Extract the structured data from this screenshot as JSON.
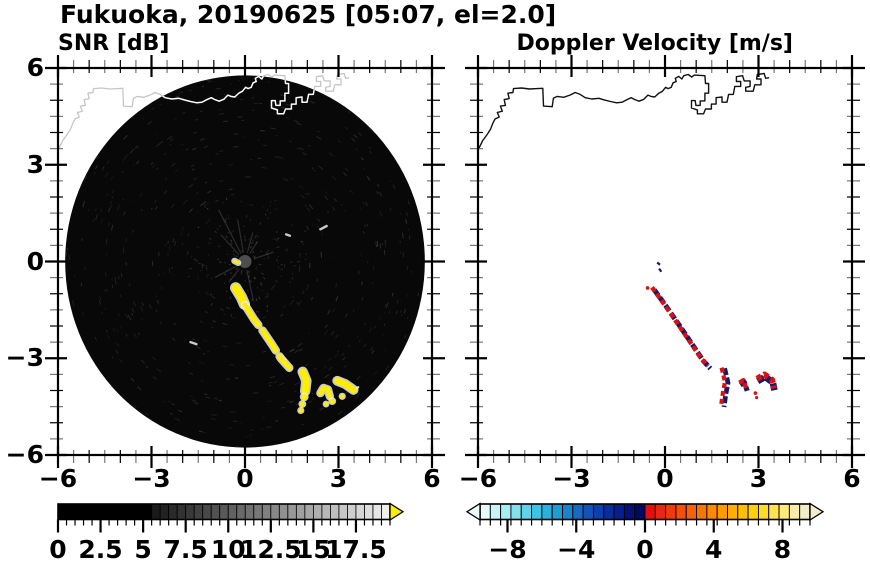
{
  "header": {
    "title": "Fukuoka, 20190625 [05:07, el=2.0]"
  },
  "panels": {
    "snr": {
      "title": "SNR [dB]"
    },
    "doppler": {
      "title": "Doppler Velocity [m/s]"
    }
  },
  "axes": {
    "range": [
      -6,
      6
    ],
    "major_step": 3,
    "minor_step": 0.5,
    "tick_labels": [
      "−6",
      "−3",
      "0",
      "3",
      "6"
    ],
    "tick_values": [
      -6,
      -3,
      0,
      3,
      6
    ]
  },
  "colors": {
    "scan_bg": "#080808",
    "disk": "#4d4d4d",
    "yellow": "#ffee00",
    "fringe": "#ededed",
    "navy": "#18186b",
    "red": "#d91111",
    "coast_white": "#ffffff",
    "coast_black": "#111111",
    "coast_faint": "#c6c6c6",
    "frame": "#000000",
    "minor_tick_alt": "#777777"
  },
  "coastline": {
    "points": [
      [
        -6.0,
        3.45
      ],
      [
        -5.85,
        3.75
      ],
      [
        -5.7,
        3.95
      ],
      [
        -5.6,
        4.1
      ],
      [
        -5.52,
        4.3
      ],
      [
        -5.45,
        4.42
      ],
      [
        -5.32,
        4.48
      ],
      [
        -5.38,
        4.62
      ],
      [
        -5.22,
        4.66
      ],
      [
        -5.28,
        4.82
      ],
      [
        -5.12,
        4.84
      ],
      [
        -5.16,
        5.02
      ],
      [
        -5.0,
        5.05
      ],
      [
        -5.04,
        5.22
      ],
      [
        -4.88,
        5.24
      ],
      [
        -4.86,
        5.36
      ],
      [
        -4.6,
        5.38
      ],
      [
        -4.35,
        5.35
      ],
      [
        -4.1,
        5.36
      ],
      [
        -3.92,
        5.37
      ],
      [
        -3.9,
        4.82
      ],
      [
        -3.62,
        4.8
      ],
      [
        -3.58,
        5.06
      ],
      [
        -3.46,
        5.12
      ],
      [
        -3.25,
        5.09
      ],
      [
        -3.05,
        5.16
      ],
      [
        -2.88,
        5.24
      ],
      [
        -2.72,
        5.18
      ],
      [
        -2.56,
        5.08
      ],
      [
        -2.35,
        5.04
      ],
      [
        -2.12,
        5.06
      ],
      [
        -1.95,
        5.01
      ],
      [
        -1.75,
        4.96
      ],
      [
        -1.55,
        4.92
      ],
      [
        -1.38,
        4.94
      ],
      [
        -1.22,
        5.02
      ],
      [
        -1.08,
        5.08
      ],
      [
        -0.97,
        5.02
      ],
      [
        -0.83,
        4.97
      ],
      [
        -0.68,
        5.03
      ],
      [
        -0.55,
        5.16
      ],
      [
        -0.45,
        5.12
      ],
      [
        -0.33,
        5.1
      ],
      [
        -0.2,
        5.22
      ],
      [
        -0.08,
        5.28
      ],
      [
        0.02,
        5.4
      ],
      [
        0.1,
        5.36
      ],
      [
        0.2,
        5.4
      ],
      [
        0.26,
        5.54
      ],
      [
        0.36,
        5.58
      ],
      [
        0.33,
        5.68
      ],
      [
        0.44,
        5.74
      ],
      [
        0.54,
        5.66
      ],
      [
        0.6,
        5.76
      ],
      [
        0.74,
        5.8
      ],
      [
        0.86,
        5.72
      ],
      [
        0.94,
        5.78
      ],
      [
        1.28,
        5.76
      ],
      [
        1.3,
        5.52
      ],
      [
        1.4,
        5.52
      ],
      [
        1.4,
        5.22
      ],
      [
        1.28,
        5.22
      ],
      [
        1.28,
        4.98
      ],
      [
        1.13,
        4.98
      ],
      [
        1.13,
        4.84
      ],
      [
        0.99,
        4.84
      ],
      [
        0.97,
        4.99
      ],
      [
        0.85,
        4.99
      ],
      [
        0.85,
        4.76
      ],
      [
        1.04,
        4.7
      ],
      [
        1.04,
        4.58
      ],
      [
        1.24,
        4.58
      ],
      [
        1.3,
        4.73
      ],
      [
        1.49,
        4.73
      ],
      [
        1.49,
        4.88
      ],
      [
        1.64,
        4.88
      ],
      [
        1.64,
        5.08
      ],
      [
        1.83,
        5.1
      ],
      [
        1.83,
        4.94
      ],
      [
        1.99,
        4.94
      ],
      [
        2.04,
        5.18
      ],
      [
        2.19,
        5.18
      ],
      [
        2.24,
        5.43
      ],
      [
        2.43,
        5.43
      ],
      [
        2.43,
        5.58
      ],
      [
        2.29,
        5.58
      ],
      [
        2.29,
        5.73
      ],
      [
        2.49,
        5.76
      ],
      [
        2.54,
        5.6
      ],
      [
        2.73,
        5.6
      ],
      [
        2.73,
        5.43
      ],
      [
        2.59,
        5.4
      ],
      [
        2.59,
        5.28
      ],
      [
        2.83,
        5.28
      ],
      [
        2.88,
        5.48
      ],
      [
        3.08,
        5.48
      ],
      [
        3.08,
        5.66
      ],
      [
        2.94,
        5.66
      ],
      [
        2.96,
        5.8
      ],
      [
        3.18,
        5.83
      ],
      [
        3.23,
        5.68
      ],
      [
        3.34,
        5.7
      ]
    ]
  },
  "chart_data": [
    {
      "type": "heatmap",
      "title": "SNR [dB]",
      "xlim": [
        -6,
        6
      ],
      "ylim": [
        -6,
        6
      ],
      "scan_radius": 5.77,
      "radar_center": [
        0,
        0
      ],
      "features": {
        "streaks": [
          {
            "pts": [
              [
                -0.3,
                -0.82
              ],
              [
                -0.12,
                -1.1
              ],
              [
                -0.02,
                -1.32
              ]
            ],
            "w": 8,
            "dash": null
          },
          {
            "pts": [
              [
                0.0,
                -1.35
              ],
              [
                0.28,
                -1.78
              ],
              [
                0.55,
                -2.12
              ],
              [
                0.85,
                -2.55
              ],
              [
                1.15,
                -3.0
              ],
              [
                1.42,
                -3.3
              ]
            ],
            "w": 5,
            "dash": "24 7"
          },
          {
            "pts": [
              [
                1.85,
                -3.42
              ],
              [
                1.97,
                -3.7
              ],
              [
                1.93,
                -4.02
              ]
            ],
            "w": 7,
            "dash": null
          },
          {
            "pts": [
              [
                2.42,
                -4.08
              ],
              [
                2.52,
                -3.92
              ],
              [
                2.66,
                -3.97
              ],
              [
                2.72,
                -4.18
              ]
            ],
            "w": 5,
            "dash": null
          },
          {
            "pts": [
              [
                2.96,
                -3.7
              ],
              [
                3.22,
                -3.8
              ],
              [
                3.48,
                -3.98
              ]
            ],
            "w": 6.5,
            "dash": null
          },
          {
            "pts": [
              [
                -0.34,
                0.02
              ],
              [
                -0.22,
                -0.04
              ]
            ],
            "w": 3,
            "dash": null
          }
        ],
        "dots": [
          [
            1.9,
            -4.2,
            3
          ],
          [
            1.84,
            -4.42,
            2.5
          ],
          [
            1.79,
            -4.62,
            2.2
          ],
          [
            2.8,
            -4.33,
            2.5
          ],
          [
            2.6,
            -4.42,
            2.0
          ],
          [
            3.12,
            -4.18,
            2.2
          ]
        ],
        "faint_dashes": [
          [
            [
              2.42,
              1.0
            ],
            [
              2.62,
              1.1
            ]
          ],
          [
            [
              -1.75,
              -2.5
            ],
            [
              -1.56,
              -2.56
            ]
          ],
          [
            [
              1.32,
              0.84
            ],
            [
              1.44,
              0.8
            ]
          ],
          [
            [
              3.5,
              -3.96
            ],
            [
              3.63,
              -3.9
            ]
          ],
          [
            [
              1.18,
              -2.92
            ],
            [
              1.3,
              -3.05
            ]
          ]
        ]
      },
      "colorbar": {
        "range": [
          0,
          19.5
        ],
        "segments": 39,
        "black_below": 5.5,
        "gray_from": "#161616",
        "gray_to": "#f2f2f2",
        "overflow_color": "#ffee00",
        "labels": [
          "0",
          "2.5",
          "5",
          "7.5",
          "10",
          "12.5",
          "15",
          "17.5"
        ],
        "label_values": [
          0,
          2.5,
          5,
          7.5,
          10,
          12.5,
          15,
          17.5
        ],
        "tick_step": 0.5
      }
    },
    {
      "type": "heatmap",
      "title": "Doppler Velocity [m/s]",
      "xlim": [
        -6,
        6
      ],
      "ylim": [
        -6,
        6
      ],
      "features": {
        "streaks": [
          {
            "pts": [
              [
                -0.38,
                -0.84
              ],
              [
                0.0,
                -1.35
              ],
              [
                0.5,
                -2.05
              ],
              [
                0.85,
                -2.55
              ],
              [
                1.2,
                -3.05
              ],
              [
                1.42,
                -3.28
              ]
            ],
            "w": 4.4,
            "ro": [
              -1.2,
              -1.3
            ],
            "no": [
              1.1,
              1.2
            ]
          },
          {
            "pts": [
              [
                1.87,
                -3.3
              ],
              [
                1.98,
                -3.75
              ],
              [
                1.91,
                -4.1
              ],
              [
                1.85,
                -4.5
              ]
            ],
            "w": 4.2,
            "ro": [
              -1.7,
              -0.3
            ],
            "no": [
              1.3,
              0.4
            ]
          },
          {
            "pts": [
              [
                2.4,
                -3.8
              ],
              [
                2.53,
                -3.72
              ],
              [
                2.62,
                -3.98
              ]
            ],
            "w": 4.5,
            "ro": [
              -0.4,
              -1.3
            ],
            "no": [
              0.5,
              0.9
            ]
          },
          {
            "pts": [
              [
                2.96,
                -3.68
              ],
              [
                3.2,
                -3.55
              ],
              [
                3.45,
                -3.72
              ],
              [
                3.5,
                -3.98
              ]
            ],
            "w": 6,
            "ro": [
              -0.3,
              -1.5
            ],
            "no": [
              0.4,
              0.9
            ]
          }
        ],
        "navy_dashes": [
          [
            [
              -0.25,
              -0.03
            ],
            [
              -0.16,
              -0.1
            ]
          ],
          [
            [
              -0.19,
              -0.22
            ],
            [
              -0.12,
              -0.32
            ]
          ]
        ],
        "red_dots": [
          [
            -0.56,
            -0.82,
            1.8
          ],
          [
            2.9,
            -4.08,
            1.8
          ],
          [
            2.94,
            -4.22,
            1.6
          ]
        ]
      },
      "colorbar": {
        "range": [
          -9.6,
          9.6
        ],
        "segments": 32,
        "underflow_color": "#ebfbfc",
        "overflow_color": "#f4edcc",
        "colors_neg": [
          "#e6fbfc",
          "#c8f4f8",
          "#a8ecf4",
          "#84e0ef",
          "#60d2ea",
          "#40c2e4",
          "#2eb0dd",
          "#229ad4",
          "#1c82ca",
          "#176ac0",
          "#1353b6",
          "#0f3faa",
          "#0b2d9c",
          "#071e8c",
          "#041278",
          "#020a60"
        ],
        "colors_pos": [
          "#e21111",
          "#e72711",
          "#ec3b0f",
          "#f04f0c",
          "#f4620a",
          "#f77608",
          "#fa8906",
          "#fc9c05",
          "#feae04",
          "#ffc004",
          "#ffcf10",
          "#ffda2e",
          "#ffe354",
          "#ffeb7a",
          "#f8eda2",
          "#f1edc8"
        ],
        "labels": [
          "−8",
          "−4",
          "0",
          "4",
          "8"
        ],
        "label_values": [
          -8,
          -4,
          0,
          4,
          8
        ],
        "tick_step": 0.6
      }
    }
  ]
}
